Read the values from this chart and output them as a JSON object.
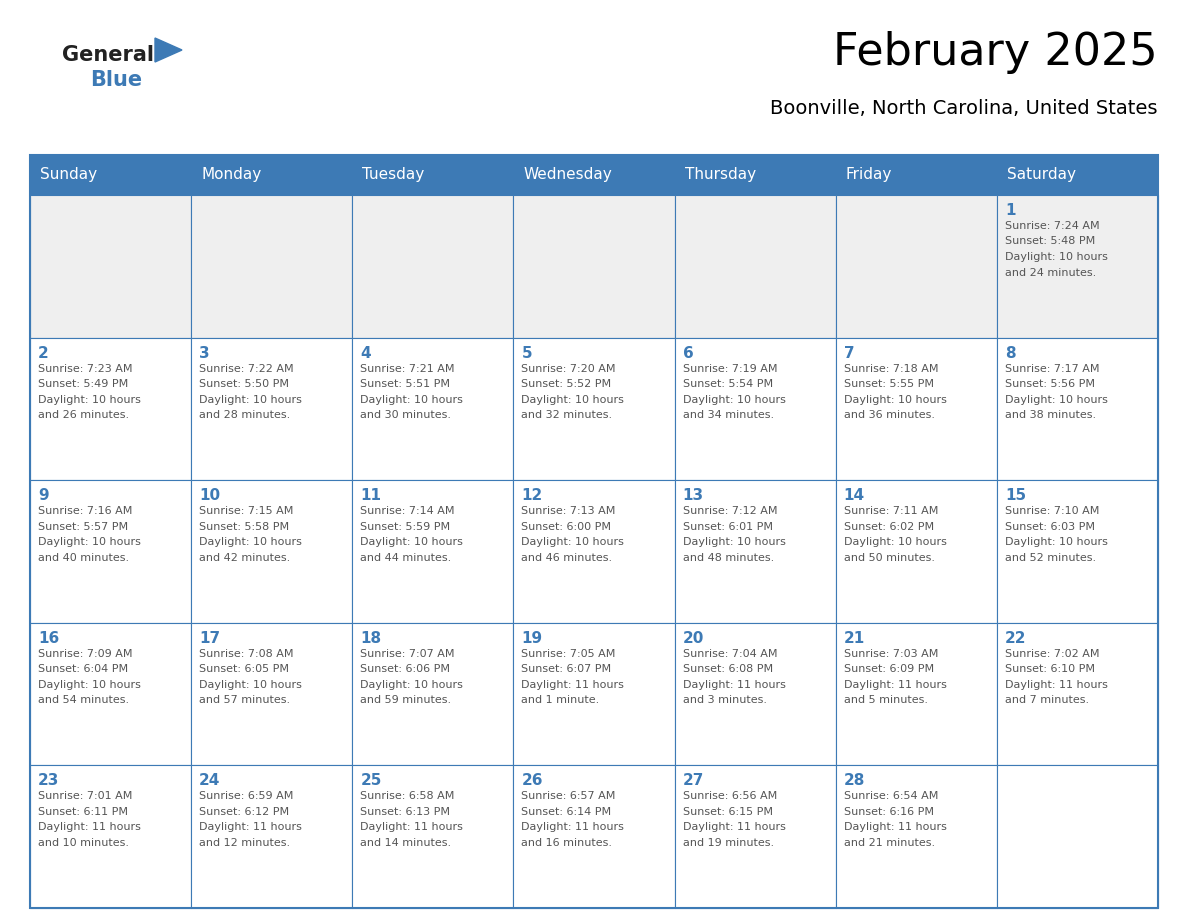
{
  "title": "February 2025",
  "subtitle": "Boonville, North Carolina, United States",
  "header_bg_color": "#3D7AB5",
  "header_text_color": "#FFFFFF",
  "cell_bg_color": "#FFFFFF",
  "cell_row1_bg_color": "#EFEFEF",
  "grid_color": "#3D7AB5",
  "title_color": "#000000",
  "subtitle_color": "#000000",
  "day_number_color": "#3D7AB5",
  "cell_text_color": "#555555",
  "days_of_week": [
    "Sunday",
    "Monday",
    "Tuesday",
    "Wednesday",
    "Thursday",
    "Friday",
    "Saturday"
  ],
  "calendar_data": [
    [
      null,
      null,
      null,
      null,
      null,
      null,
      {
        "day": 1,
        "sunrise": "7:24 AM",
        "sunset": "5:48 PM",
        "daylight": "10 hours\nand 24 minutes."
      }
    ],
    [
      {
        "day": 2,
        "sunrise": "7:23 AM",
        "sunset": "5:49 PM",
        "daylight": "10 hours\nand 26 minutes."
      },
      {
        "day": 3,
        "sunrise": "7:22 AM",
        "sunset": "5:50 PM",
        "daylight": "10 hours\nand 28 minutes."
      },
      {
        "day": 4,
        "sunrise": "7:21 AM",
        "sunset": "5:51 PM",
        "daylight": "10 hours\nand 30 minutes."
      },
      {
        "day": 5,
        "sunrise": "7:20 AM",
        "sunset": "5:52 PM",
        "daylight": "10 hours\nand 32 minutes."
      },
      {
        "day": 6,
        "sunrise": "7:19 AM",
        "sunset": "5:54 PM",
        "daylight": "10 hours\nand 34 minutes."
      },
      {
        "day": 7,
        "sunrise": "7:18 AM",
        "sunset": "5:55 PM",
        "daylight": "10 hours\nand 36 minutes."
      },
      {
        "day": 8,
        "sunrise": "7:17 AM",
        "sunset": "5:56 PM",
        "daylight": "10 hours\nand 38 minutes."
      }
    ],
    [
      {
        "day": 9,
        "sunrise": "7:16 AM",
        "sunset": "5:57 PM",
        "daylight": "10 hours\nand 40 minutes."
      },
      {
        "day": 10,
        "sunrise": "7:15 AM",
        "sunset": "5:58 PM",
        "daylight": "10 hours\nand 42 minutes."
      },
      {
        "day": 11,
        "sunrise": "7:14 AM",
        "sunset": "5:59 PM",
        "daylight": "10 hours\nand 44 minutes."
      },
      {
        "day": 12,
        "sunrise": "7:13 AM",
        "sunset": "6:00 PM",
        "daylight": "10 hours\nand 46 minutes."
      },
      {
        "day": 13,
        "sunrise": "7:12 AM",
        "sunset": "6:01 PM",
        "daylight": "10 hours\nand 48 minutes."
      },
      {
        "day": 14,
        "sunrise": "7:11 AM",
        "sunset": "6:02 PM",
        "daylight": "10 hours\nand 50 minutes."
      },
      {
        "day": 15,
        "sunrise": "7:10 AM",
        "sunset": "6:03 PM",
        "daylight": "10 hours\nand 52 minutes."
      }
    ],
    [
      {
        "day": 16,
        "sunrise": "7:09 AM",
        "sunset": "6:04 PM",
        "daylight": "10 hours\nand 54 minutes."
      },
      {
        "day": 17,
        "sunrise": "7:08 AM",
        "sunset": "6:05 PM",
        "daylight": "10 hours\nand 57 minutes."
      },
      {
        "day": 18,
        "sunrise": "7:07 AM",
        "sunset": "6:06 PM",
        "daylight": "10 hours\nand 59 minutes."
      },
      {
        "day": 19,
        "sunrise": "7:05 AM",
        "sunset": "6:07 PM",
        "daylight": "11 hours\nand 1 minute."
      },
      {
        "day": 20,
        "sunrise": "7:04 AM",
        "sunset": "6:08 PM",
        "daylight": "11 hours\nand 3 minutes."
      },
      {
        "day": 21,
        "sunrise": "7:03 AM",
        "sunset": "6:09 PM",
        "daylight": "11 hours\nand 5 minutes."
      },
      {
        "day": 22,
        "sunrise": "7:02 AM",
        "sunset": "6:10 PM",
        "daylight": "11 hours\nand 7 minutes."
      }
    ],
    [
      {
        "day": 23,
        "sunrise": "7:01 AM",
        "sunset": "6:11 PM",
        "daylight": "11 hours\nand 10 minutes."
      },
      {
        "day": 24,
        "sunrise": "6:59 AM",
        "sunset": "6:12 PM",
        "daylight": "11 hours\nand 12 minutes."
      },
      {
        "day": 25,
        "sunrise": "6:58 AM",
        "sunset": "6:13 PM",
        "daylight": "11 hours\nand 14 minutes."
      },
      {
        "day": 26,
        "sunrise": "6:57 AM",
        "sunset": "6:14 PM",
        "daylight": "11 hours\nand 16 minutes."
      },
      {
        "day": 27,
        "sunrise": "6:56 AM",
        "sunset": "6:15 PM",
        "daylight": "11 hours\nand 19 minutes."
      },
      {
        "day": 28,
        "sunrise": "6:54 AM",
        "sunset": "6:16 PM",
        "daylight": "11 hours\nand 21 minutes."
      },
      null
    ]
  ],
  "logo_general_color": "#222222",
  "logo_blue_color": "#3D7AB5",
  "logo_triangle_color": "#3D7AB5",
  "fig_width": 11.88,
  "fig_height": 9.18,
  "dpi": 100
}
